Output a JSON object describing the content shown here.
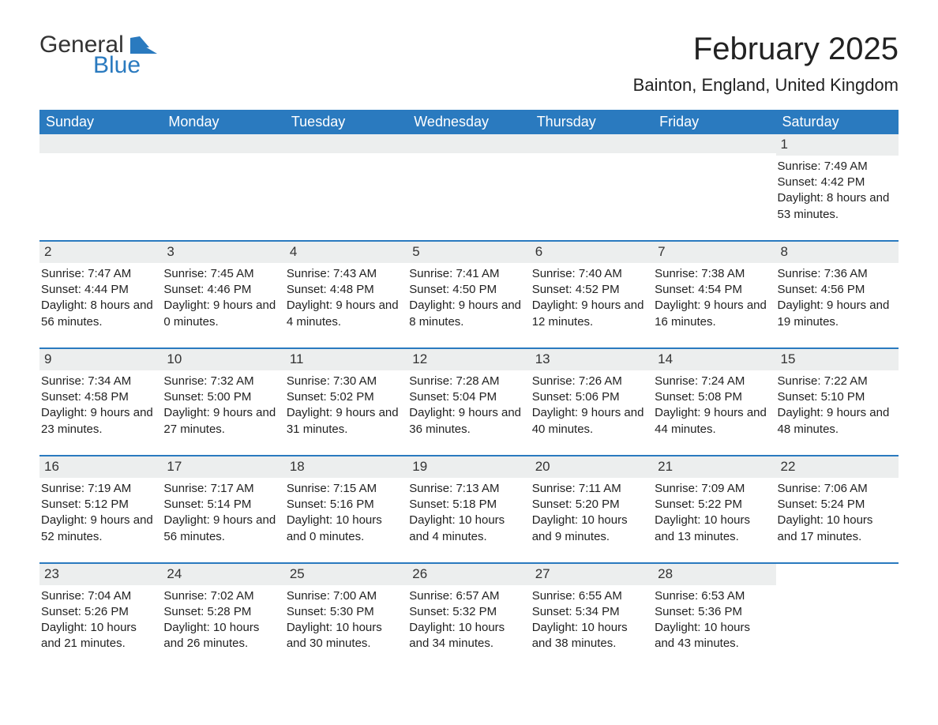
{
  "brand": {
    "part1": "General",
    "part2": "Blue"
  },
  "title": "February 2025",
  "location": "Bainton, England, United Kingdom",
  "colors": {
    "accent": "#2a7abf",
    "strip": "#eceeee",
    "text": "#222222",
    "bg": "#ffffff"
  },
  "dayheaders": [
    "Sunday",
    "Monday",
    "Tuesday",
    "Wednesday",
    "Thursday",
    "Friday",
    "Saturday"
  ],
  "layout": {
    "first_day_column_index": 6,
    "days_in_month": 28,
    "columns": 7,
    "rows": 5
  },
  "days": [
    {
      "n": 1,
      "sunrise": "7:49 AM",
      "sunset": "4:42 PM",
      "daylight": "8 hours and 53 minutes."
    },
    {
      "n": 2,
      "sunrise": "7:47 AM",
      "sunset": "4:44 PM",
      "daylight": "8 hours and 56 minutes."
    },
    {
      "n": 3,
      "sunrise": "7:45 AM",
      "sunset": "4:46 PM",
      "daylight": "9 hours and 0 minutes."
    },
    {
      "n": 4,
      "sunrise": "7:43 AM",
      "sunset": "4:48 PM",
      "daylight": "9 hours and 4 minutes."
    },
    {
      "n": 5,
      "sunrise": "7:41 AM",
      "sunset": "4:50 PM",
      "daylight": "9 hours and 8 minutes."
    },
    {
      "n": 6,
      "sunrise": "7:40 AM",
      "sunset": "4:52 PM",
      "daylight": "9 hours and 12 minutes."
    },
    {
      "n": 7,
      "sunrise": "7:38 AM",
      "sunset": "4:54 PM",
      "daylight": "9 hours and 16 minutes."
    },
    {
      "n": 8,
      "sunrise": "7:36 AM",
      "sunset": "4:56 PM",
      "daylight": "9 hours and 19 minutes."
    },
    {
      "n": 9,
      "sunrise": "7:34 AM",
      "sunset": "4:58 PM",
      "daylight": "9 hours and 23 minutes."
    },
    {
      "n": 10,
      "sunrise": "7:32 AM",
      "sunset": "5:00 PM",
      "daylight": "9 hours and 27 minutes."
    },
    {
      "n": 11,
      "sunrise": "7:30 AM",
      "sunset": "5:02 PM",
      "daylight": "9 hours and 31 minutes."
    },
    {
      "n": 12,
      "sunrise": "7:28 AM",
      "sunset": "5:04 PM",
      "daylight": "9 hours and 36 minutes."
    },
    {
      "n": 13,
      "sunrise": "7:26 AM",
      "sunset": "5:06 PM",
      "daylight": "9 hours and 40 minutes."
    },
    {
      "n": 14,
      "sunrise": "7:24 AM",
      "sunset": "5:08 PM",
      "daylight": "9 hours and 44 minutes."
    },
    {
      "n": 15,
      "sunrise": "7:22 AM",
      "sunset": "5:10 PM",
      "daylight": "9 hours and 48 minutes."
    },
    {
      "n": 16,
      "sunrise": "7:19 AM",
      "sunset": "5:12 PM",
      "daylight": "9 hours and 52 minutes."
    },
    {
      "n": 17,
      "sunrise": "7:17 AM",
      "sunset": "5:14 PM",
      "daylight": "9 hours and 56 minutes."
    },
    {
      "n": 18,
      "sunrise": "7:15 AM",
      "sunset": "5:16 PM",
      "daylight": "10 hours and 0 minutes."
    },
    {
      "n": 19,
      "sunrise": "7:13 AM",
      "sunset": "5:18 PM",
      "daylight": "10 hours and 4 minutes."
    },
    {
      "n": 20,
      "sunrise": "7:11 AM",
      "sunset": "5:20 PM",
      "daylight": "10 hours and 9 minutes."
    },
    {
      "n": 21,
      "sunrise": "7:09 AM",
      "sunset": "5:22 PM",
      "daylight": "10 hours and 13 minutes."
    },
    {
      "n": 22,
      "sunrise": "7:06 AM",
      "sunset": "5:24 PM",
      "daylight": "10 hours and 17 minutes."
    },
    {
      "n": 23,
      "sunrise": "7:04 AM",
      "sunset": "5:26 PM",
      "daylight": "10 hours and 21 minutes."
    },
    {
      "n": 24,
      "sunrise": "7:02 AM",
      "sunset": "5:28 PM",
      "daylight": "10 hours and 26 minutes."
    },
    {
      "n": 25,
      "sunrise": "7:00 AM",
      "sunset": "5:30 PM",
      "daylight": "10 hours and 30 minutes."
    },
    {
      "n": 26,
      "sunrise": "6:57 AM",
      "sunset": "5:32 PM",
      "daylight": "10 hours and 34 minutes."
    },
    {
      "n": 27,
      "sunrise": "6:55 AM",
      "sunset": "5:34 PM",
      "daylight": "10 hours and 38 minutes."
    },
    {
      "n": 28,
      "sunrise": "6:53 AM",
      "sunset": "5:36 PM",
      "daylight": "10 hours and 43 minutes."
    }
  ],
  "labels": {
    "sunrise": "Sunrise: ",
    "sunset": "Sunset: ",
    "daylight": "Daylight: "
  }
}
